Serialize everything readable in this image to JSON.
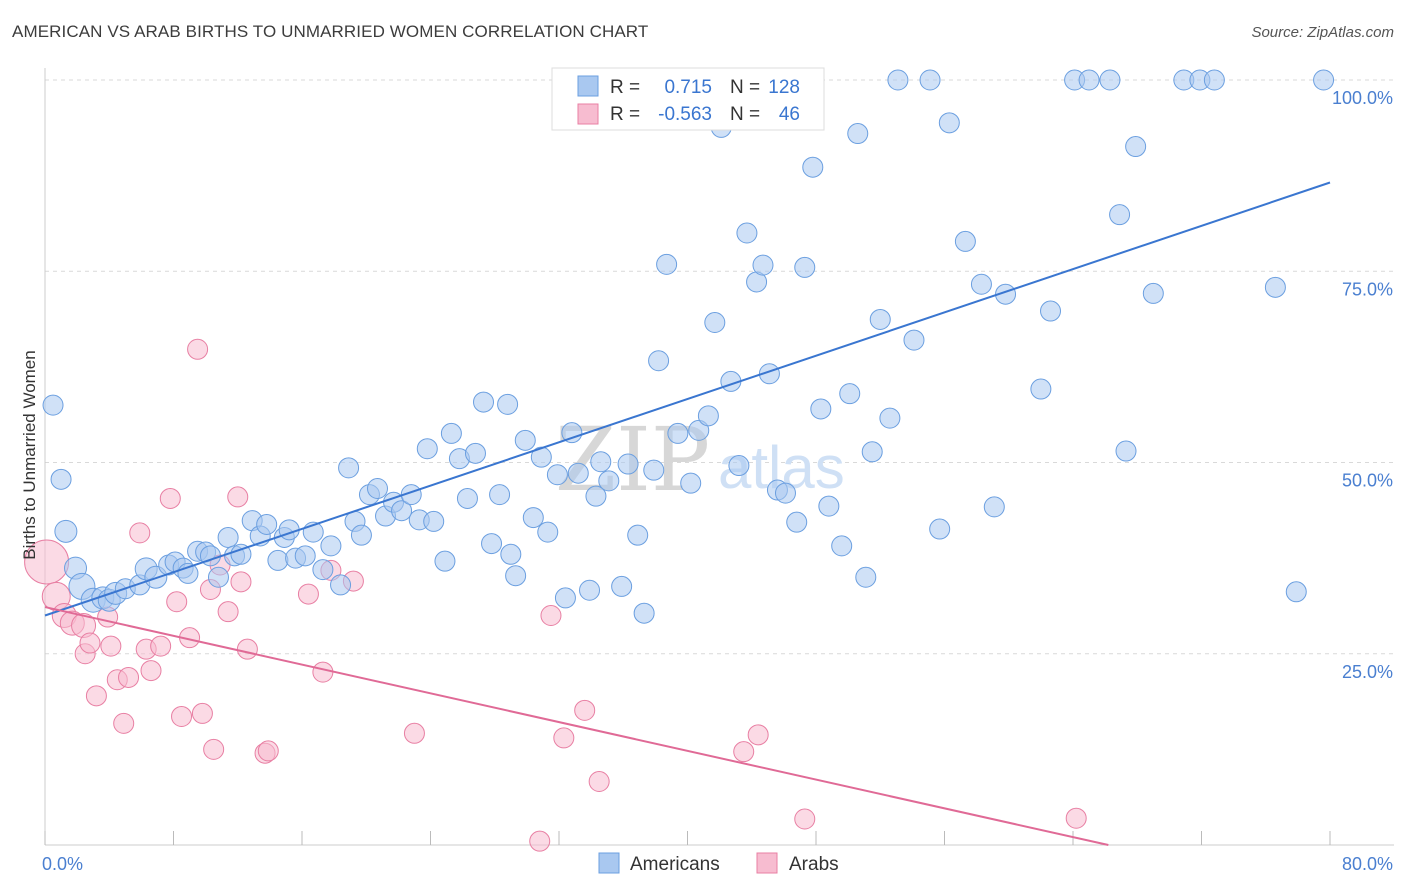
{
  "title": "AMERICAN VS ARAB BIRTHS TO UNMARRIED WOMEN CORRELATION CHART",
  "source": "Source: ZipAtlas.com",
  "watermark": {
    "zip": "ZIP",
    "atlas": "atlas"
  },
  "legend": {
    "rows": [
      {
        "r_label": "R =",
        "r_value": "0.715",
        "n_label": "N =",
        "n_value": "128"
      },
      {
        "r_label": "R =",
        "r_value": "-0.563",
        "n_label": "N =",
        "n_value": "46"
      }
    ]
  },
  "bottom_legend": {
    "americans": "Americans",
    "arabs": "Arabs"
  },
  "colors": {
    "american_fill": "#a9c8f0",
    "american_stroke": "#6b9fe0",
    "american_line": "#3a76d0",
    "arab_fill": "#f7bcd0",
    "arab_stroke": "#e87fa3",
    "arab_line": "#e06a96",
    "tick": "#4a7fd0",
    "grid": "#d9d9d9"
  },
  "chart_data": {
    "type": "scatter",
    "title": "AMERICAN VS ARAB BIRTHS TO UNMARRIED WOMEN CORRELATION CHART",
    "xlabel": "",
    "ylabel": "Births to Unmarried Women",
    "xlim": [
      0,
      80
    ],
    "ylim": [
      0,
      100
    ],
    "x_tick_labels": [
      "0.0%",
      "80.0%"
    ],
    "y_tick_labels": [
      "25.0%",
      "50.0%",
      "75.0%",
      "100.0%"
    ],
    "y_ticks": [
      25,
      50,
      75,
      100
    ],
    "grid": true,
    "legend_position": "top-center",
    "series": [
      {
        "name": "Americans",
        "r": 0.715,
        "n": 128,
        "trend": {
          "x": [
            0,
            80
          ],
          "y": [
            30.0,
            86.6
          ]
        },
        "points": [
          [
            0.5,
            57.5,
            10
          ],
          [
            1.0,
            47.8,
            10
          ],
          [
            1.3,
            41.0,
            11
          ],
          [
            1.9,
            36.2,
            11
          ],
          [
            2.3,
            33.8,
            13
          ],
          [
            3.0,
            32.0,
            12
          ],
          [
            3.6,
            32.3,
            11
          ],
          [
            4.0,
            32.0,
            11
          ],
          [
            4.4,
            32.9,
            11
          ],
          [
            5.0,
            33.5,
            10
          ],
          [
            5.9,
            34.0,
            10
          ],
          [
            6.3,
            36.1,
            11
          ],
          [
            6.9,
            35.0,
            11
          ],
          [
            7.7,
            36.6,
            10
          ],
          [
            8.1,
            37.0,
            10
          ],
          [
            8.6,
            36.2,
            10
          ],
          [
            8.9,
            35.5,
            10
          ],
          [
            9.5,
            38.4,
            10
          ],
          [
            10.0,
            38.3,
            10
          ],
          [
            10.3,
            37.8,
            10
          ],
          [
            10.8,
            35.0,
            10
          ],
          [
            11.4,
            40.2,
            10
          ],
          [
            11.8,
            37.8,
            10
          ],
          [
            12.2,
            38.0,
            10
          ],
          [
            12.9,
            42.4,
            10
          ],
          [
            13.4,
            40.4,
            10
          ],
          [
            13.8,
            41.9,
            10
          ],
          [
            14.5,
            37.2,
            10
          ],
          [
            14.9,
            40.2,
            10
          ],
          [
            15.2,
            41.2,
            10
          ],
          [
            15.6,
            37.5,
            10
          ],
          [
            16.2,
            37.8,
            10
          ],
          [
            16.7,
            40.9,
            10
          ],
          [
            17.3,
            36.0,
            10
          ],
          [
            17.8,
            39.1,
            10
          ],
          [
            18.4,
            34.0,
            10
          ],
          [
            18.9,
            49.3,
            10
          ],
          [
            19.3,
            42.3,
            10
          ],
          [
            19.7,
            40.5,
            10
          ],
          [
            20.2,
            45.8,
            10
          ],
          [
            20.7,
            46.6,
            10
          ],
          [
            21.2,
            43.0,
            10
          ],
          [
            21.7,
            44.8,
            10
          ],
          [
            22.2,
            43.7,
            10
          ],
          [
            22.8,
            45.8,
            10
          ],
          [
            23.3,
            42.5,
            10
          ],
          [
            23.8,
            51.8,
            10
          ],
          [
            24.2,
            42.3,
            10
          ],
          [
            24.9,
            37.1,
            10
          ],
          [
            25.3,
            53.8,
            10
          ],
          [
            25.8,
            50.5,
            10
          ],
          [
            26.3,
            45.3,
            10
          ],
          [
            26.8,
            51.2,
            10
          ],
          [
            27.3,
            57.9,
            10
          ],
          [
            27.8,
            39.4,
            10
          ],
          [
            28.3,
            45.8,
            10
          ],
          [
            28.8,
            57.6,
            10
          ],
          [
            29.3,
            35.2,
            10
          ],
          [
            29.9,
            52.9,
            10
          ],
          [
            30.4,
            42.8,
            10
          ],
          [
            30.9,
            50.7,
            10
          ],
          [
            31.3,
            40.9,
            10
          ],
          [
            31.9,
            48.4,
            10
          ],
          [
            32.4,
            32.3,
            10
          ],
          [
            32.8,
            53.9,
            10
          ],
          [
            33.2,
            48.6,
            10
          ],
          [
            33.9,
            33.3,
            10
          ],
          [
            34.3,
            45.6,
            10
          ],
          [
            34.6,
            50.1,
            10
          ],
          [
            35.1,
            47.6,
            10
          ],
          [
            35.9,
            33.8,
            10
          ],
          [
            36.3,
            49.8,
            10
          ],
          [
            36.9,
            40.5,
            10
          ],
          [
            37.3,
            30.3,
            10
          ],
          [
            37.9,
            49.0,
            10
          ],
          [
            38.2,
            63.3,
            10
          ],
          [
            38.7,
            75.9,
            10
          ],
          [
            39.4,
            53.8,
            10
          ],
          [
            40.2,
            47.3,
            10
          ],
          [
            40.7,
            54.2,
            10
          ],
          [
            41.3,
            56.1,
            10
          ],
          [
            41.7,
            68.3,
            10
          ],
          [
            42.1,
            93.8,
            10
          ],
          [
            42.7,
            60.6,
            10
          ],
          [
            43.2,
            49.6,
            10
          ],
          [
            43.7,
            80.0,
            10
          ],
          [
            44.3,
            73.6,
            10
          ],
          [
            44.7,
            75.8,
            10
          ],
          [
            45.1,
            61.6,
            10
          ],
          [
            45.6,
            46.4,
            10
          ],
          [
            46.1,
            46.0,
            10
          ],
          [
            46.8,
            42.2,
            10
          ],
          [
            47.3,
            75.5,
            10
          ],
          [
            47.8,
            88.6,
            10
          ],
          [
            48.3,
            57.0,
            10
          ],
          [
            48.8,
            44.3,
            10
          ],
          [
            49.6,
            39.1,
            10
          ],
          [
            50.1,
            59.0,
            10
          ],
          [
            50.6,
            93.0,
            10
          ],
          [
            51.1,
            35.0,
            10
          ],
          [
            51.5,
            51.4,
            10
          ],
          [
            52.0,
            68.7,
            10
          ],
          [
            52.6,
            55.8,
            10
          ],
          [
            53.1,
            100.0,
            10
          ],
          [
            54.1,
            66.0,
            10
          ],
          [
            55.1,
            100.0,
            10
          ],
          [
            55.7,
            41.3,
            10
          ],
          [
            56.3,
            94.4,
            10
          ],
          [
            57.3,
            78.9,
            10
          ],
          [
            58.3,
            73.3,
            10
          ],
          [
            59.1,
            44.2,
            10
          ],
          [
            59.8,
            72.0,
            10
          ],
          [
            62.0,
            59.6,
            10
          ],
          [
            62.6,
            69.8,
            10
          ],
          [
            64.1,
            100.0,
            10
          ],
          [
            65.0,
            100.0,
            10
          ],
          [
            66.3,
            100.0,
            10
          ],
          [
            66.9,
            82.4,
            10
          ],
          [
            67.3,
            51.5,
            10
          ],
          [
            67.9,
            91.3,
            10
          ],
          [
            69.0,
            72.1,
            10
          ],
          [
            70.9,
            100.0,
            10
          ],
          [
            71.9,
            100.0,
            10
          ],
          [
            72.8,
            100.0,
            10
          ],
          [
            76.6,
            72.9,
            10
          ],
          [
            79.6,
            100.0,
            10
          ],
          [
            77.9,
            33.1,
            10
          ],
          [
            29.0,
            38.0,
            10
          ]
        ]
      },
      {
        "name": "Arabs",
        "r": -0.563,
        "n": 46,
        "trend": {
          "x": [
            0,
            66.2
          ],
          "y": [
            31.1,
            0.0
          ]
        },
        "points": [
          [
            0.1,
            37.0,
            22
          ],
          [
            0.7,
            32.5,
            14
          ],
          [
            1.2,
            30.0,
            12
          ],
          [
            1.7,
            29.0,
            12
          ],
          [
            2.4,
            28.7,
            12
          ],
          [
            2.5,
            25.0,
            10
          ],
          [
            2.8,
            26.4,
            10
          ],
          [
            3.2,
            19.5,
            10
          ],
          [
            3.9,
            29.8,
            10
          ],
          [
            4.1,
            26.0,
            10
          ],
          [
            4.5,
            21.6,
            10
          ],
          [
            4.9,
            15.9,
            10
          ],
          [
            5.2,
            21.9,
            10
          ],
          [
            5.9,
            40.8,
            10
          ],
          [
            6.3,
            25.6,
            10
          ],
          [
            6.6,
            22.8,
            10
          ],
          [
            7.2,
            26.0,
            10
          ],
          [
            7.8,
            45.3,
            10
          ],
          [
            8.2,
            31.8,
            10
          ],
          [
            8.5,
            16.8,
            10
          ],
          [
            9.0,
            27.1,
            10
          ],
          [
            9.5,
            64.8,
            10
          ],
          [
            9.8,
            17.2,
            10
          ],
          [
            10.3,
            33.4,
            10
          ],
          [
            10.5,
            12.5,
            10
          ],
          [
            10.9,
            36.6,
            10
          ],
          [
            11.4,
            30.5,
            10
          ],
          [
            12.0,
            45.5,
            10
          ],
          [
            12.2,
            34.4,
            10
          ],
          [
            12.6,
            25.6,
            10
          ],
          [
            13.7,
            12.0,
            10
          ],
          [
            13.9,
            12.3,
            10
          ],
          [
            16.4,
            32.8,
            10
          ],
          [
            17.3,
            22.6,
            10
          ],
          [
            17.8,
            35.9,
            10
          ],
          [
            19.2,
            34.5,
            10
          ],
          [
            23.0,
            14.6,
            10
          ],
          [
            30.8,
            0.5,
            10
          ],
          [
            32.3,
            14.0,
            10
          ],
          [
            33.6,
            17.6,
            10
          ],
          [
            34.5,
            8.3,
            10
          ],
          [
            43.5,
            12.2,
            10
          ],
          [
            44.4,
            14.4,
            10
          ],
          [
            47.3,
            3.4,
            10
          ],
          [
            64.2,
            3.5,
            10
          ],
          [
            31.5,
            30.0,
            10
          ]
        ]
      }
    ]
  }
}
